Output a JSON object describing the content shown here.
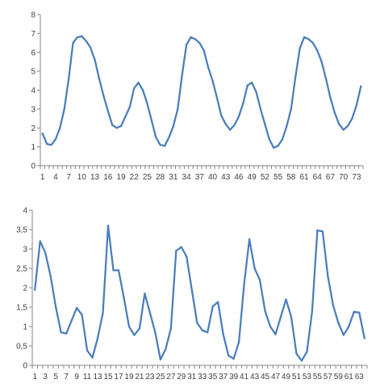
{
  "chart_data": [
    {
      "type": "line",
      "series_color": "#4a7ebb",
      "ylim": [
        0,
        8
      ],
      "y_ticks": [
        "0",
        "1",
        "2",
        "3",
        "4",
        "5",
        "6",
        "7",
        "8"
      ],
      "grid": false,
      "x_tick_labels": [
        "1",
        "4",
        "7",
        "10",
        "13",
        "16",
        "19",
        "22",
        "25",
        "28",
        "31",
        "34",
        "37",
        "40",
        "43",
        "46",
        "49",
        "52",
        "55",
        "58",
        "61",
        "64",
        "67",
        "70",
        "73"
      ],
      "x": [
        1,
        2,
        3,
        4,
        5,
        6,
        7,
        8,
        9,
        10,
        11,
        12,
        13,
        14,
        15,
        16,
        17,
        18,
        19,
        20,
        21,
        22,
        23,
        24,
        25,
        26,
        27,
        28,
        29,
        30,
        31,
        32,
        33,
        34,
        35,
        36,
        37,
        38,
        39,
        40,
        41,
        42,
        43,
        44,
        45,
        46,
        47,
        48,
        49,
        50,
        51,
        52,
        53,
        54,
        55,
        56,
        57,
        58,
        59,
        60,
        61,
        62,
        63,
        64,
        65,
        66,
        67,
        68,
        69,
        70,
        71,
        72,
        73,
        74
      ],
      "values": [
        1.7,
        1.15,
        1.1,
        1.4,
        2.0,
        3.0,
        4.6,
        6.5,
        6.8,
        6.85,
        6.6,
        6.25,
        5.6,
        4.6,
        3.7,
        2.9,
        2.15,
        2.0,
        2.1,
        2.6,
        3.1,
        4.1,
        4.4,
        4.0,
        3.3,
        2.4,
        1.5,
        1.1,
        1.05,
        1.5,
        2.1,
        3.0,
        4.8,
        6.4,
        6.8,
        6.7,
        6.5,
        6.1,
        5.2,
        4.5,
        3.6,
        2.65,
        2.2,
        1.9,
        2.15,
        2.6,
        3.3,
        4.25,
        4.4,
        3.9,
        3.0,
        2.2,
        1.4,
        0.95,
        1.05,
        1.4,
        2.1,
        3.0,
        4.7,
        6.2,
        6.8,
        6.7,
        6.5,
        6.1,
        5.5,
        4.6,
        3.6,
        2.8,
        2.2,
        1.9,
        2.1,
        2.5,
        3.2,
        4.2
      ]
    },
    {
      "type": "line",
      "series_color": "#4a7ebb",
      "ylim": [
        0,
        4
      ],
      "y_ticks": [
        "0",
        "0,5",
        "1",
        "1,5",
        "2",
        "2,5",
        "3",
        "3,5",
        "4"
      ],
      "grid": false,
      "x_tick_labels": [
        "1",
        "3",
        "5",
        "7",
        "9",
        "11",
        "13",
        "15",
        "17",
        "19",
        "21",
        "23",
        "25",
        "27",
        "29",
        "31",
        "33",
        "35",
        "37",
        "39",
        "41",
        "43",
        "45",
        "47",
        "49",
        "51",
        "53",
        "55",
        "57",
        "59",
        "61",
        "63"
      ],
      "x": [
        1,
        2,
        3,
        4,
        5,
        6,
        7,
        8,
        9,
        10,
        11,
        12,
        13,
        14,
        15,
        16,
        17,
        18,
        19,
        20,
        21,
        22,
        23,
        24,
        25,
        26,
        27,
        28,
        29,
        30,
        31,
        32,
        33,
        34,
        35,
        36,
        37,
        38,
        39,
        40,
        41,
        42,
        43,
        44,
        45,
        46,
        47,
        48,
        49,
        50,
        51,
        52,
        53,
        54,
        55,
        56,
        57,
        58,
        59,
        60,
        61,
        62,
        63,
        64
      ],
      "values": [
        1.95,
        3.2,
        2.9,
        2.3,
        1.5,
        0.85,
        0.82,
        1.15,
        1.48,
        1.3,
        0.38,
        0.2,
        0.7,
        1.35,
        3.6,
        2.45,
        2.45,
        1.75,
        1.0,
        0.78,
        0.95,
        1.85,
        1.35,
        0.85,
        0.15,
        0.42,
        0.95,
        2.95,
        3.05,
        2.8,
        1.95,
        1.1,
        0.9,
        0.85,
        1.52,
        1.63,
        0.8,
        0.25,
        0.17,
        0.6,
        2.1,
        3.25,
        2.5,
        2.2,
        1.4,
        1.0,
        0.8,
        1.25,
        1.7,
        1.25,
        0.3,
        0.12,
        0.35,
        1.4,
        3.48,
        3.45,
        2.3,
        1.55,
        1.1,
        0.78,
        1.0,
        1.38,
        1.36,
        0.7
      ]
    }
  ]
}
